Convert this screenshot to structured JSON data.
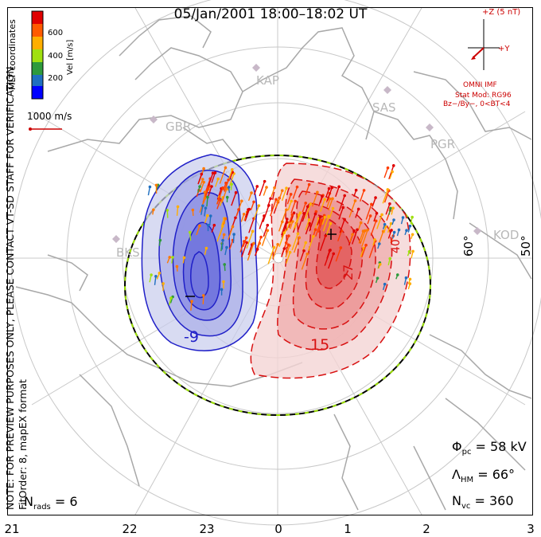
{
  "title": "05/Jan/2001 18:00–18:02 UT",
  "side_note": "NOTE: FOR PREVIEW PURPOSES ONLY, PLEASE CONTACT VT-SD STAFF FOR VERIFICATION.",
  "fit_order": "FitOrder: 8, mapEX format",
  "mlt_coords": "MLT coordinates",
  "colorbar": {
    "unit_label": "Vel [m/s]",
    "ticks": [
      "600",
      "400",
      "200"
    ],
    "colors": [
      "#e00000",
      "#ff5a00",
      "#ffae00",
      "#a0e010",
      "#2e9a3c",
      "#1f6fc0",
      "#0000ff"
    ]
  },
  "velocity_scale": "1000 m/s",
  "imf": {
    "bz_label": "+Z (5 nT)",
    "by_label": "+Y",
    "source": "OMNI IMF",
    "model": "Stat Mod: RG96",
    "condition": "Bz−/By−, 0<BT<4"
  },
  "stations": [
    "KAP",
    "SAS",
    "GBR",
    "PGR",
    "BKS",
    "KOD"
  ],
  "lat_labels": [
    "60°",
    "50°"
  ],
  "contour_labels": [
    "-9",
    "15",
    "27",
    "40"
  ],
  "mlt_labels": [
    "21",
    "22",
    "23",
    "0",
    "1",
    "2",
    "3"
  ],
  "stats": {
    "phi_pc": "= 58 kV",
    "lambda_hm": "= 66°",
    "n_vc": "= 360",
    "n_rads": "= 6"
  },
  "colors": {
    "negative": "#2020c8",
    "positive": "#d81010",
    "grid": "#c8c8c8"
  }
}
